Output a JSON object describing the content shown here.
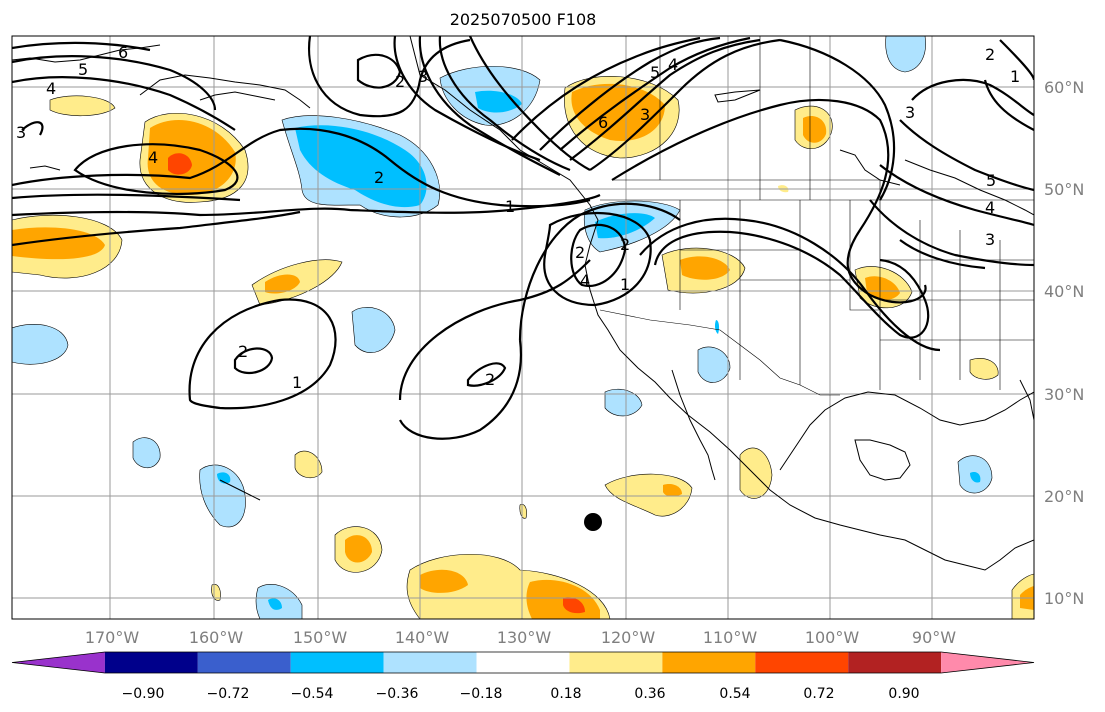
{
  "title": "2025070500 F108",
  "lon_labels": [
    "170°W",
    "160°W",
    "150°W",
    "140°W",
    "130°W",
    "120°W",
    "110°W",
    "100°W",
    "90°W"
  ],
  "lat_labels": [
    "60°N",
    "50°N",
    "40°N",
    "30°N",
    "20°N",
    "10°N"
  ],
  "colorbar": {
    "tick_labels": [
      "−0.90",
      "−0.72",
      "−0.54",
      "−0.36",
      "−0.18",
      "0.18",
      "0.36",
      "0.54",
      "0.72",
      "0.90"
    ],
    "colors": [
      "#9932cc",
      "#00008b",
      "#3a5fcd",
      "#00bfff",
      "#aee2ff",
      "#ffffff",
      "#ffec8b",
      "#ffa500",
      "#ff4500",
      "#b22222",
      "#ff8aab"
    ]
  },
  "contour_labels": [
    "6",
    "5",
    "4",
    "3",
    "2",
    "1",
    "4",
    "3",
    "2",
    "1",
    "2",
    "1",
    "2",
    "2",
    "3",
    "4",
    "6",
    "5",
    "4",
    "3",
    "2",
    "1",
    "5",
    "4",
    "3",
    "2"
  ]
}
